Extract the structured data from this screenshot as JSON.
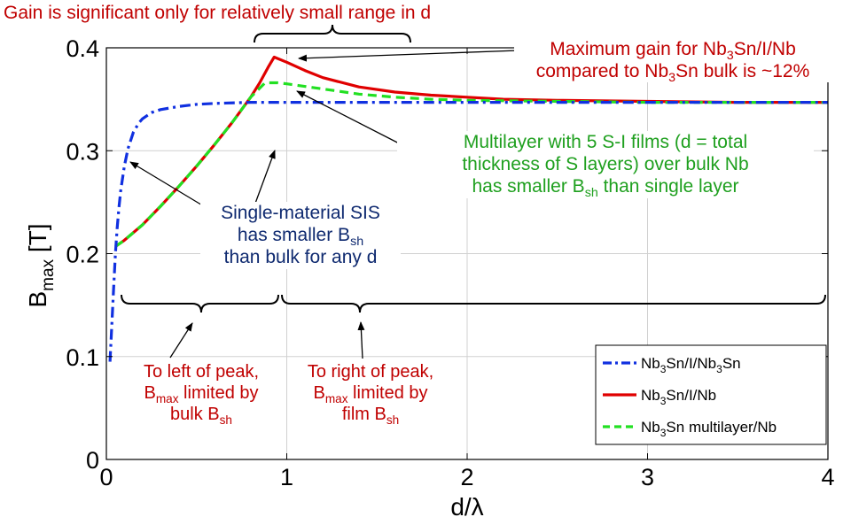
{
  "chart_data": {
    "type": "line",
    "xlabel": "d/λ",
    "ylabel_main": "B",
    "ylabel_sub": "max",
    "ylabel_unit": " [T]",
    "xlim": [
      0,
      4
    ],
    "ylim": [
      0,
      0.4
    ],
    "xticks": [
      "0",
      "1",
      "2",
      "3",
      "4"
    ],
    "yticks": [
      "0",
      "0.1",
      "0.2",
      "0.3",
      "0.4"
    ],
    "grid": true,
    "legend_position": "bottom-right",
    "series": [
      {
        "name_parts": [
          "Nb",
          "3",
          "Sn/I/Nb",
          "3",
          "Sn"
        ],
        "color": "#1030e0",
        "style": "dash-dot",
        "x": [
          0.02,
          0.03,
          0.04,
          0.05,
          0.06,
          0.07,
          0.08,
          0.1,
          0.12,
          0.15,
          0.18,
          0.2,
          0.25,
          0.3,
          0.4,
          0.5,
          0.6,
          0.8,
          1.0,
          1.5,
          2.0,
          3.0,
          4.0
        ],
        "y": [
          0.095,
          0.13,
          0.165,
          0.2,
          0.225,
          0.245,
          0.262,
          0.285,
          0.302,
          0.318,
          0.327,
          0.331,
          0.337,
          0.34,
          0.343,
          0.345,
          0.346,
          0.347,
          0.347,
          0.347,
          0.347,
          0.347,
          0.347
        ]
      },
      {
        "name_parts": [
          "Nb",
          "3",
          "Sn/I/Nb"
        ],
        "color": "#e00000",
        "style": "solid",
        "x": [
          0.05,
          0.1,
          0.2,
          0.3,
          0.4,
          0.5,
          0.6,
          0.7,
          0.8,
          0.85,
          0.9,
          0.93,
          1.0,
          1.1,
          1.2,
          1.4,
          1.6,
          1.8,
          2.0,
          2.2,
          2.5,
          3.0,
          3.5,
          4.0
        ],
        "y": [
          0.207,
          0.213,
          0.228,
          0.246,
          0.265,
          0.285,
          0.306,
          0.328,
          0.352,
          0.366,
          0.382,
          0.391,
          0.386,
          0.378,
          0.371,
          0.362,
          0.357,
          0.354,
          0.352,
          0.35,
          0.349,
          0.348,
          0.347,
          0.347
        ]
      },
      {
        "name_parts": [
          "Nb",
          "3",
          "Sn multilayer/Nb"
        ],
        "color": "#22e022",
        "style": "dashed",
        "x": [
          0.05,
          0.1,
          0.2,
          0.3,
          0.4,
          0.5,
          0.6,
          0.7,
          0.8,
          0.88,
          0.95,
          1.0,
          1.2,
          1.4,
          1.6,
          1.8,
          2.0,
          2.5,
          3.0,
          3.5,
          4.0
        ],
        "y": [
          0.207,
          0.213,
          0.228,
          0.246,
          0.265,
          0.285,
          0.306,
          0.328,
          0.352,
          0.366,
          0.366,
          0.365,
          0.36,
          0.355,
          0.352,
          0.35,
          0.349,
          0.348,
          0.347,
          0.347,
          0.347
        ]
      }
    ],
    "annotations": {
      "top_gain": "Gain is significant only for relatively small range in d",
      "max_gain_1": [
        "Maximum gain for Nb",
        "3",
        "Sn/I/Nb"
      ],
      "max_gain_2": [
        "compared to Nb",
        "3",
        "Sn bulk is ~12%"
      ],
      "multilayer_1": "Multilayer with 5 S-I films (d = total",
      "multilayer_2": "thickness of S layers) over bulk Nb",
      "multilayer_3": [
        "has smaller B",
        "sh",
        " than single layer"
      ],
      "sis_1": "Single-material SIS",
      "sis_2": [
        "has smaller B",
        "sh"
      ],
      "sis_3": "than bulk for any d",
      "left_1": "To left of peak,",
      "left_2": [
        "B",
        "max",
        " limited by"
      ],
      "left_3": [
        "bulk B",
        "sh"
      ],
      "right_1": "To right of peak,",
      "right_2": [
        "B",
        "max",
        " limited by"
      ],
      "right_3": [
        "film B",
        "sh"
      ]
    }
  }
}
